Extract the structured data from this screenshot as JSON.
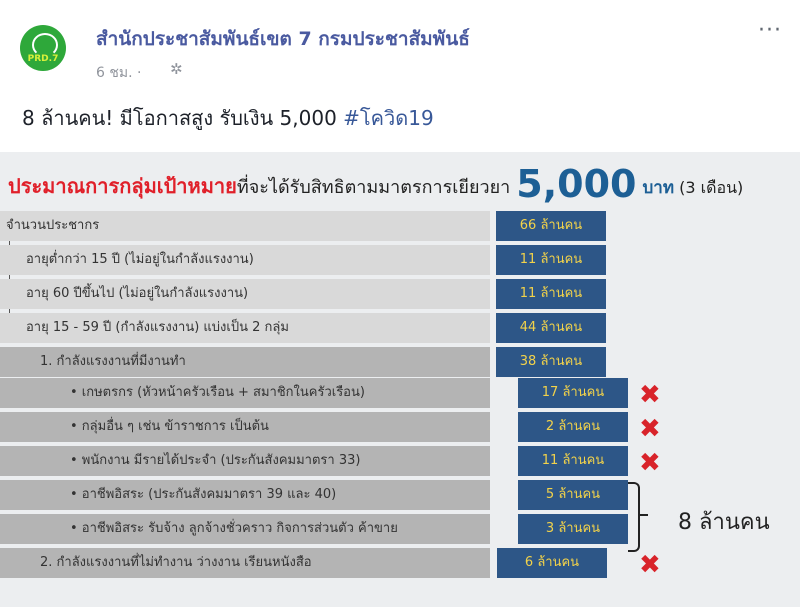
{
  "post": {
    "page_name": "สำนักประชาสัมพันธ์เขต 7 กรมประชาสัมพันธ์",
    "avatar_text": "PRD.7",
    "time": "6 ชม. ·",
    "text": "8 ล้านคน! มีโอกาสสูง รับเงิน 5,000 ",
    "hashtag": "#โควิด19",
    "icons": [
      "globe-gear-icon",
      "more-options-icon"
    ],
    "more": "···"
  },
  "infographic": {
    "title_red": "ประมาณการกลุ่มเป้าหมาย",
    "title_black": "ที่จะได้รับสิทธิตามมาตรการเยียวยา",
    "amount": "5,000",
    "unit": "บาท",
    "period": "(3 เดือน)",
    "rows": [
      {
        "label": "จำนวนประชากร",
        "value": "66 ล้านคน"
      },
      {
        "label": "อายุต่ำกว่า 15 ปี (ไม่อยู่ในกำลังแรงงาน)",
        "value": "11 ล้านคน"
      },
      {
        "label": "อายุ 60 ปีขึ้นไป (ไม่อยู่ในกำลังแรงงาน)",
        "value": "11 ล้านคน"
      },
      {
        "label": "อายุ 15 - 59 ปี (กำลังแรงงาน) แบ่งเป็น 2 กลุ่ม",
        "value": "44 ล้านคน"
      },
      {
        "label": "1. กำลังแรงงานที่มีงานทำ",
        "value": "38 ล้านคน"
      },
      {
        "label": "•      เกษตรกร (หัวหน้าครัวเรือน + สมาชิกในครัวเรือน)",
        "value": "17 ล้านคน",
        "excluded": true
      },
      {
        "label": "•      กลุ่มอื่น ๆ เช่น ข้าราชการ เป็นต้น",
        "value": "2 ล้านคน",
        "excluded": true
      },
      {
        "label": "•      พนักงาน มีรายได้ประจำ (ประกันสังคมมาตรา 33)",
        "value": "11 ล้านคน",
        "excluded": true
      },
      {
        "label": "•      อาชีพอิสระ (ประกันสังคมมาตรา 39 และ 40)",
        "value": "5 ล้านคน"
      },
      {
        "label": "•      อาชีพอิสระ รับจ้าง ลูกจ้างชั่วคราว กิจการส่วนตัว ค้าขาย",
        "value": "3 ล้านคน"
      },
      {
        "label": "2. กำลังแรงงานที่ไม่ทำงาน ว่างงาน เรียนหนังสือ",
        "value": "6 ล้านคน",
        "excluded": true
      }
    ],
    "x_mark": "✖",
    "total": "8 ล้านคน",
    "colors": {
      "value_box": "#2d5687",
      "value_text": "#f2d24a",
      "title_red": "#e0202a",
      "x_mark": "#d8232a"
    }
  }
}
